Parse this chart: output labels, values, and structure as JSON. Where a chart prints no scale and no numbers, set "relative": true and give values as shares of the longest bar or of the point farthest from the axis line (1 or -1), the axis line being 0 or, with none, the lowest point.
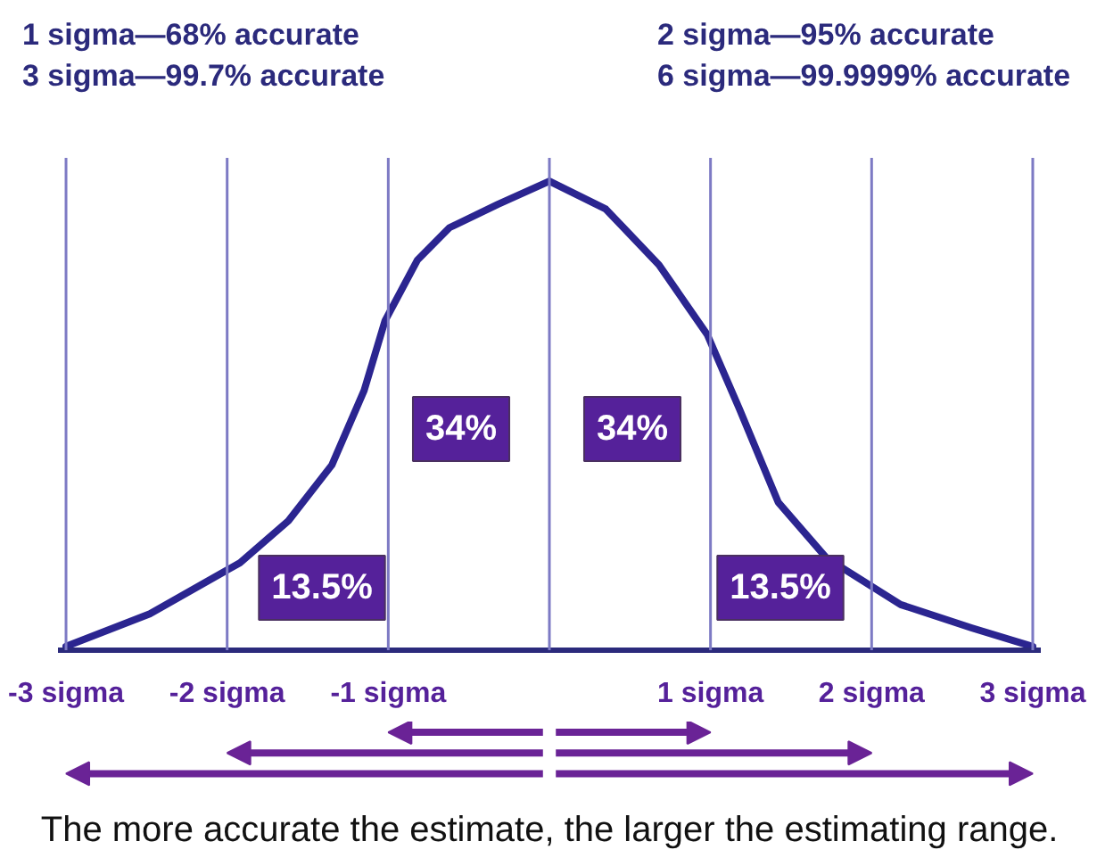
{
  "chart_data": {
    "type": "line",
    "relative": true,
    "x": [
      -3,
      -2.48,
      -1.92,
      -1.62,
      -1.35,
      -1.15,
      -1.02,
      -0.82,
      -0.62,
      -0.32,
      0,
      0.35,
      0.68,
      0.98,
      1.18,
      1.42,
      1.72,
      2.18,
      2.62,
      3
    ],
    "series": [
      {
        "color": "#2b2590",
        "values": [
          0,
          0.07,
          0.18,
          0.27,
          0.39,
          0.55,
          0.7,
          0.83,
          0.9,
          0.95,
          1,
          0.94,
          0.82,
          0.67,
          0.51,
          0.31,
          0.19,
          0.09,
          0.04,
          0
        ]
      }
    ],
    "xlim": [
      -3.05,
      3.05
    ],
    "xticks": [
      {
        "value": -3,
        "label": "-3 sigma"
      },
      {
        "value": -2,
        "label": "-2 sigma"
      },
      {
        "value": -1,
        "label": "-1 sigma"
      },
      {
        "value": 1,
        "label": "1 sigma"
      },
      {
        "value": 2,
        "label": "2 sigma"
      },
      {
        "value": 3,
        "label": "3 sigma"
      }
    ],
    "ref_lines": [
      {
        "axis": "x",
        "value": -3,
        "color": "#7d7ac4"
      },
      {
        "axis": "x",
        "value": -2,
        "color": "#7d7ac4"
      },
      {
        "axis": "x",
        "value": -1,
        "color": "#7d7ac4"
      },
      {
        "axis": "x",
        "value": 0,
        "color": "#7d7ac4"
      },
      {
        "axis": "x",
        "value": 1,
        "color": "#7d7ac4"
      },
      {
        "axis": "x",
        "value": 2,
        "color": "#7d7ac4"
      },
      {
        "axis": "x",
        "value": 3,
        "color": "#7d7ac4"
      }
    ],
    "annotations": [
      "1 sigma—68% accurate",
      "2 sigma—95% accurate",
      "3 sigma—99.7% accurate",
      "6 sigma—99.9999% accurate",
      "34%",
      "34%",
      "13.5%",
      "13.5%",
      "The more accurate the estimate, the larger the estimating range."
    ],
    "grid": false,
    "line_style": "solid"
  }
}
